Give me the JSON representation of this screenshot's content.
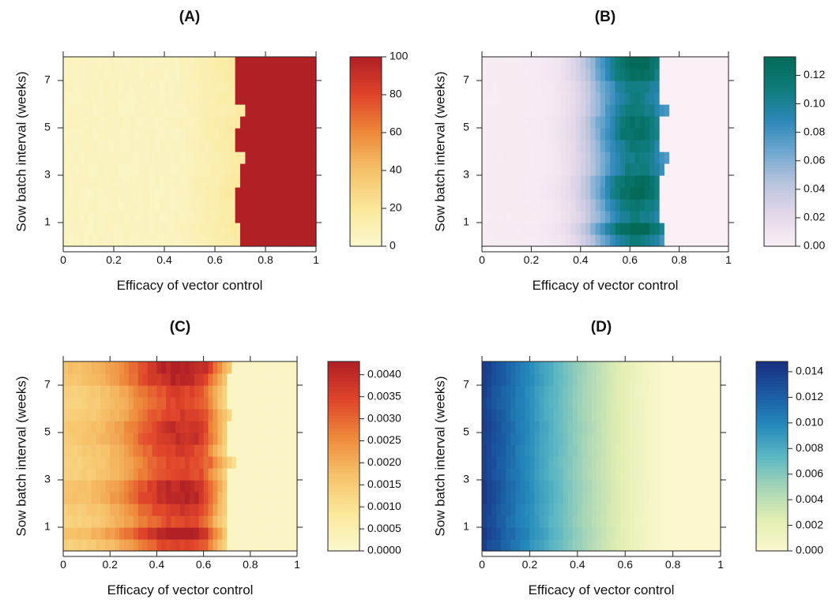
{
  "chart_data": [
    {
      "type": "heatmap",
      "title": "(A)",
      "xlabel": "Efficacy of vector control",
      "ylabel": "Sow batch interval (weeks)",
      "xlim": [
        0,
        1
      ],
      "ylim": [
        0,
        8
      ],
      "x_ticks": [
        "0",
        "0.2",
        "0.4",
        "0.6",
        "0.8",
        "1"
      ],
      "y_ticks": [
        "1",
        "3",
        "5",
        "7"
      ],
      "colorbar": {
        "min": 0,
        "max": 100,
        "ticks": [
          "0",
          "20",
          "40",
          "60",
          "80",
          "100"
        ],
        "colors": [
          "#fbf8cf",
          "#fbe89a",
          "#f6c26a",
          "#ee8a3b",
          "#e0442a",
          "#b02025"
        ]
      },
      "pattern": {
        "kind": "step",
        "low": 4,
        "high": 100,
        "threshold_by_interval": [
          0.695,
          0.7,
          0.69,
          0.69,
          0.685,
          0.695,
          0.7,
          0.72,
          0.68,
          0.69,
          0.695,
          0.72,
          0.685,
          0.69,
          0.69,
          0.69
        ],
        "gradient_start": 0.45
      }
    },
    {
      "type": "heatmap",
      "title": "(B)",
      "xlabel": "Efficacy of vector control",
      "ylabel": "Sow batch interval (weeks)",
      "xlim": [
        0,
        1
      ],
      "ylim": [
        0,
        8
      ],
      "x_ticks": [
        "0",
        "0.2",
        "0.4",
        "0.6",
        "0.8",
        "1"
      ],
      "y_ticks": [
        "1",
        "3",
        "5",
        "7"
      ],
      "colorbar": {
        "min": 0,
        "max": 0.133,
        "ticks": [
          "0.00",
          "0.02",
          "0.04",
          "0.06",
          "0.08",
          "0.10",
          "0.12"
        ],
        "colors": [
          "#fbf0f6",
          "#e4d8ea",
          "#b9c4dd",
          "#6fa8cf",
          "#2c88b8",
          "#0f7c7a",
          "#036a58"
        ]
      },
      "pattern": {
        "kind": "peak",
        "peak_value": 0.13,
        "cutoff_by_interval": [
          0.73,
          0.73,
          0.72,
          0.72,
          0.71,
          0.72,
          0.73,
          0.75,
          0.71,
          0.72,
          0.72,
          0.75,
          0.71,
          0.72,
          0.72,
          0.72
        ]
      }
    },
    {
      "type": "heatmap",
      "title": "(C)",
      "xlabel": "Efficacy of vector control",
      "ylabel": "Sow batch interval (weeks)",
      "xlim": [
        0,
        1
      ],
      "ylim": [
        0,
        8
      ],
      "x_ticks": [
        "0",
        "0.2",
        "0.4",
        "0.6",
        "0.8",
        "1"
      ],
      "y_ticks": [
        "1",
        "3",
        "5",
        "7"
      ],
      "colorbar": {
        "min": 0,
        "max": 0.0043,
        "ticks": [
          "0.0000",
          "0.0005",
          "0.0010",
          "0.0015",
          "0.0020",
          "0.0025",
          "0.0030",
          "0.0035",
          "0.0040"
        ],
        "colors": [
          "#fbf8cf",
          "#fbe89a",
          "#f6c26a",
          "#ee8a3b",
          "#e0442a",
          "#b02025"
        ]
      },
      "pattern": {
        "kind": "rise",
        "start_value": 0.0016,
        "peak_value": 0.0042,
        "peak_x": 0.5,
        "cutoff_by_interval": [
          0.7,
          0.7,
          0.69,
          0.7,
          0.69,
          0.7,
          0.7,
          0.73,
          0.69,
          0.7,
          0.7,
          0.72,
          0.7,
          0.7,
          0.7,
          0.72
        ]
      }
    },
    {
      "type": "heatmap",
      "title": "(D)",
      "xlabel": "Efficacy of vector control",
      "ylabel": "Sow batch interval (weeks)",
      "xlim": [
        0,
        1
      ],
      "ylim": [
        0,
        8
      ],
      "x_ticks": [
        "0",
        "0.2",
        "0.4",
        "0.6",
        "0.8",
        "1"
      ],
      "y_ticks": [
        "1",
        "3",
        "5",
        "7"
      ],
      "colorbar": {
        "min": 0,
        "max": 0.0148,
        "ticks": [
          "0.000",
          "0.002",
          "0.004",
          "0.006",
          "0.008",
          "0.010",
          "0.012",
          "0.014"
        ],
        "colors": [
          "#fbf8cf",
          "#e3eeb2",
          "#a7d6b7",
          "#5bb7c3",
          "#2489bb",
          "#1a5aa3",
          "#1a2f80"
        ]
      },
      "pattern": {
        "kind": "decay",
        "start_value": 0.0142,
        "zero_at": 0.78
      }
    }
  ]
}
